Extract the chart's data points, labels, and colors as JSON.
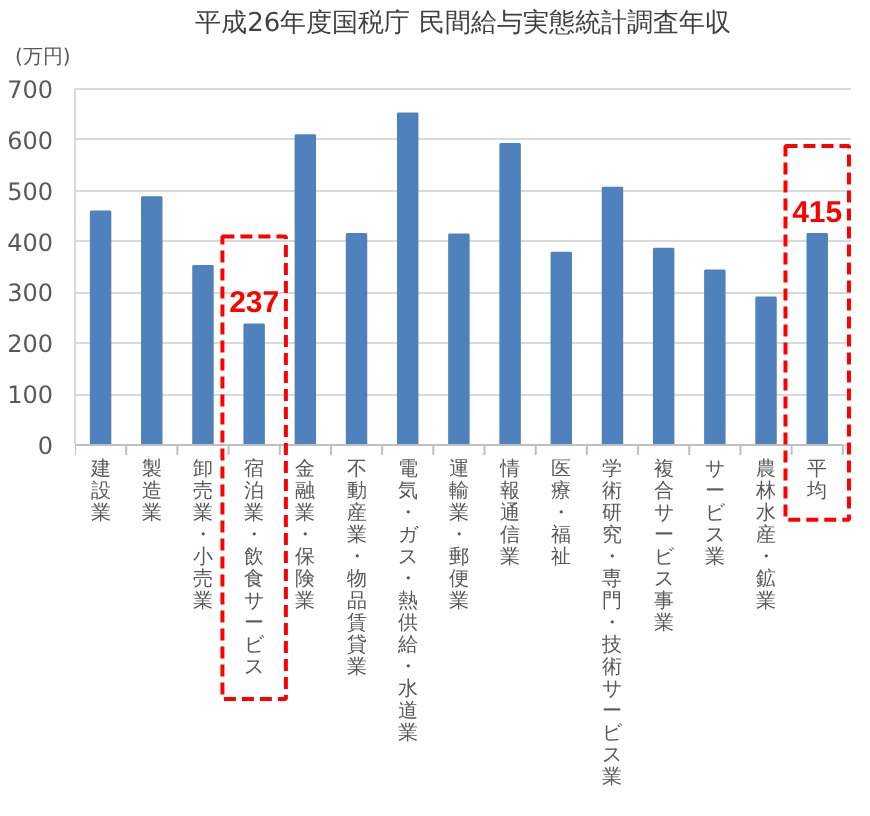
{
  "chart_data": {
    "type": "bar",
    "title": "平成26年度国税庁 民間給与実態統計調査年収",
    "ylabel": "(万円)",
    "categories": [
      "建設業",
      "製造業",
      "卸売業・小売業",
      "宿泊業・飲食サービス",
      "金融業・保険業",
      "不動産業・物品賃貸業",
      "電気・ガス・熱供給・水道業",
      "運輸業・郵便業",
      "情報通信業",
      "医療・福祉",
      "学術研究・専門・技術サービス業",
      "複合サービス事業",
      "サービス業",
      "農林水産・鉱業",
      "平均"
    ],
    "values": [
      459,
      487,
      352,
      237,
      609,
      415,
      652,
      414,
      592,
      378,
      506,
      386,
      343,
      290,
      415
    ],
    "color": "#4f81bd",
    "value_labels": [
      null,
      null,
      null,
      "237",
      null,
      null,
      null,
      null,
      null,
      null,
      null,
      null,
      null,
      null,
      "415"
    ],
    "ylim": [
      0,
      700
    ],
    "yticks": [
      0,
      100,
      200,
      300,
      400,
      500,
      600,
      700
    ],
    "grid": "y"
  }
}
